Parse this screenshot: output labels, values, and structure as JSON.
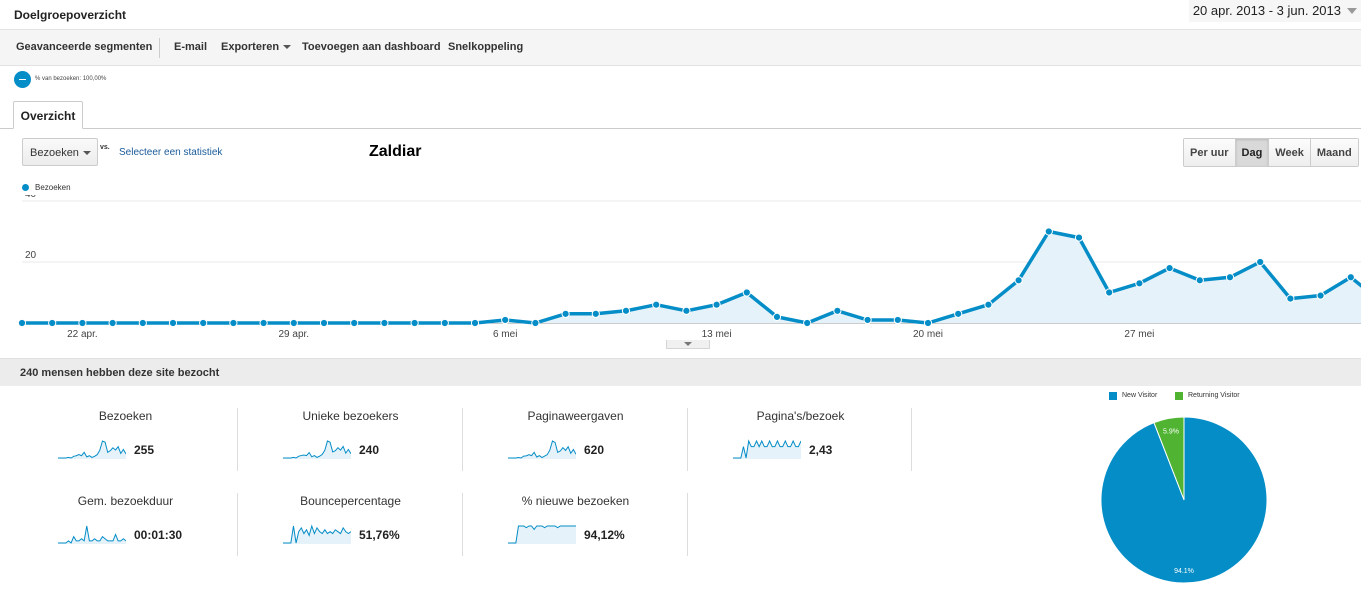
{
  "header": {
    "title": "Doelgroepoverzicht",
    "date_range": "20 apr. 2013 - 3 jun. 2013"
  },
  "toolbar": {
    "advanced_segments": "Geavanceerde segmenten",
    "email": "E-mail",
    "export": "Exporteren",
    "add_to_dashboard": "Toevoegen aan dashboard",
    "shortcut": "Snelkoppeling"
  },
  "segment": {
    "label": "% van bezoeken: 100,00%"
  },
  "tabs": [
    {
      "label": "Overzicht",
      "active": true
    }
  ],
  "graph_controls": {
    "metric": "Bezoeken",
    "vs": "vs.",
    "select_metric": "Selecteer een statistiek",
    "overlay_title": "Zaldiar",
    "periods": [
      {
        "label": "Per uur",
        "active": false
      },
      {
        "label": "Dag",
        "active": true
      },
      {
        "label": "Week",
        "active": false
      },
      {
        "label": "Maand",
        "active": false
      }
    ]
  },
  "colors": {
    "accent": "#058dc7",
    "returning": "#50b432",
    "fill": "#e6f2f9"
  },
  "chart_data": [
    {
      "type": "area",
      "series": [
        {
          "name": "Bezoeken",
          "values": [
            0,
            0,
            0,
            0,
            0,
            0,
            0,
            0,
            0,
            0,
            0,
            0,
            0,
            0,
            0,
            0,
            1,
            0,
            3,
            3,
            4,
            6,
            4,
            6,
            10,
            2,
            0,
            4,
            1,
            1,
            0,
            3,
            6,
            14,
            30,
            28,
            10,
            13,
            18,
            14,
            15,
            20,
            8,
            9,
            15,
            7
          ]
        }
      ],
      "x_start": "20 apr. 2013",
      "x_ticks": [
        "22 apr.",
        "29 apr.",
        "6 mei",
        "13 mei",
        "20 mei",
        "27 mei"
      ],
      "y_ticks": [
        "20",
        "40"
      ],
      "ylim": [
        0,
        40
      ],
      "grid": true
    },
    {
      "type": "pie",
      "slices": [
        {
          "name": "New Visitor",
          "value": 94.1,
          "label": "94.1%"
        },
        {
          "name": "Returning Visitor",
          "value": 5.9,
          "label": "5.9%"
        }
      ],
      "legend": "top"
    }
  ],
  "summary": {
    "title": "240 mensen hebben deze site bezocht"
  },
  "stats": [
    {
      "label": "Bezoeken",
      "value": "255",
      "spark": [
        0,
        0,
        0,
        0,
        1,
        0,
        3,
        4,
        6,
        4,
        10,
        2,
        4,
        1,
        3,
        6,
        14,
        30,
        28,
        10,
        13,
        18,
        14,
        20,
        8,
        15,
        7
      ]
    },
    {
      "label": "Unieke bezoekers",
      "value": "240",
      "spark": [
        0,
        0,
        0,
        0,
        1,
        0,
        3,
        4,
        5,
        4,
        9,
        2,
        4,
        1,
        3,
        6,
        13,
        28,
        26,
        10,
        12,
        17,
        13,
        19,
        8,
        14,
        7
      ]
    },
    {
      "label": "Paginaweergaven",
      "value": "620",
      "spark": [
        0,
        0,
        0,
        0,
        2,
        0,
        8,
        9,
        14,
        10,
        24,
        4,
        10,
        2,
        8,
        14,
        34,
        72,
        66,
        24,
        30,
        44,
        32,
        48,
        20,
        36,
        16
      ]
    },
    {
      "label": "Pagina's/bezoek",
      "value": "2,43",
      "spark": [
        0,
        0,
        0,
        0,
        2,
        0,
        3,
        2,
        2,
        3,
        2,
        3,
        2,
        2,
        3,
        2,
        2,
        3,
        2,
        2,
        3,
        2,
        2,
        3,
        2,
        2,
        3
      ]
    },
    {
      "label": "Gem. bezoekduur",
      "value": "00:01:30",
      "spark": [
        0,
        0,
        0,
        0,
        1,
        0,
        3,
        1,
        1,
        2,
        1,
        8,
        1,
        1,
        2,
        1,
        1,
        3,
        2,
        1,
        1,
        1,
        4,
        1,
        1,
        2,
        1
      ]
    },
    {
      "label": "Bouncepercentage",
      "value": "51,76%",
      "spark": [
        0,
        0,
        0,
        0,
        9,
        0,
        6,
        8,
        5,
        7,
        4,
        9,
        5,
        8,
        6,
        5,
        7,
        5,
        6,
        5,
        7,
        6,
        5,
        8,
        6,
        5,
        6
      ]
    },
    {
      "label": "% nieuwe bezoeken",
      "value": "94,12%",
      "spark": [
        0,
        0,
        0,
        0,
        10,
        10,
        10,
        9,
        10,
        10,
        8,
        10,
        10,
        10,
        9,
        10,
        10,
        10,
        10,
        9,
        10,
        10,
        10,
        10,
        10,
        10,
        10
      ]
    }
  ]
}
